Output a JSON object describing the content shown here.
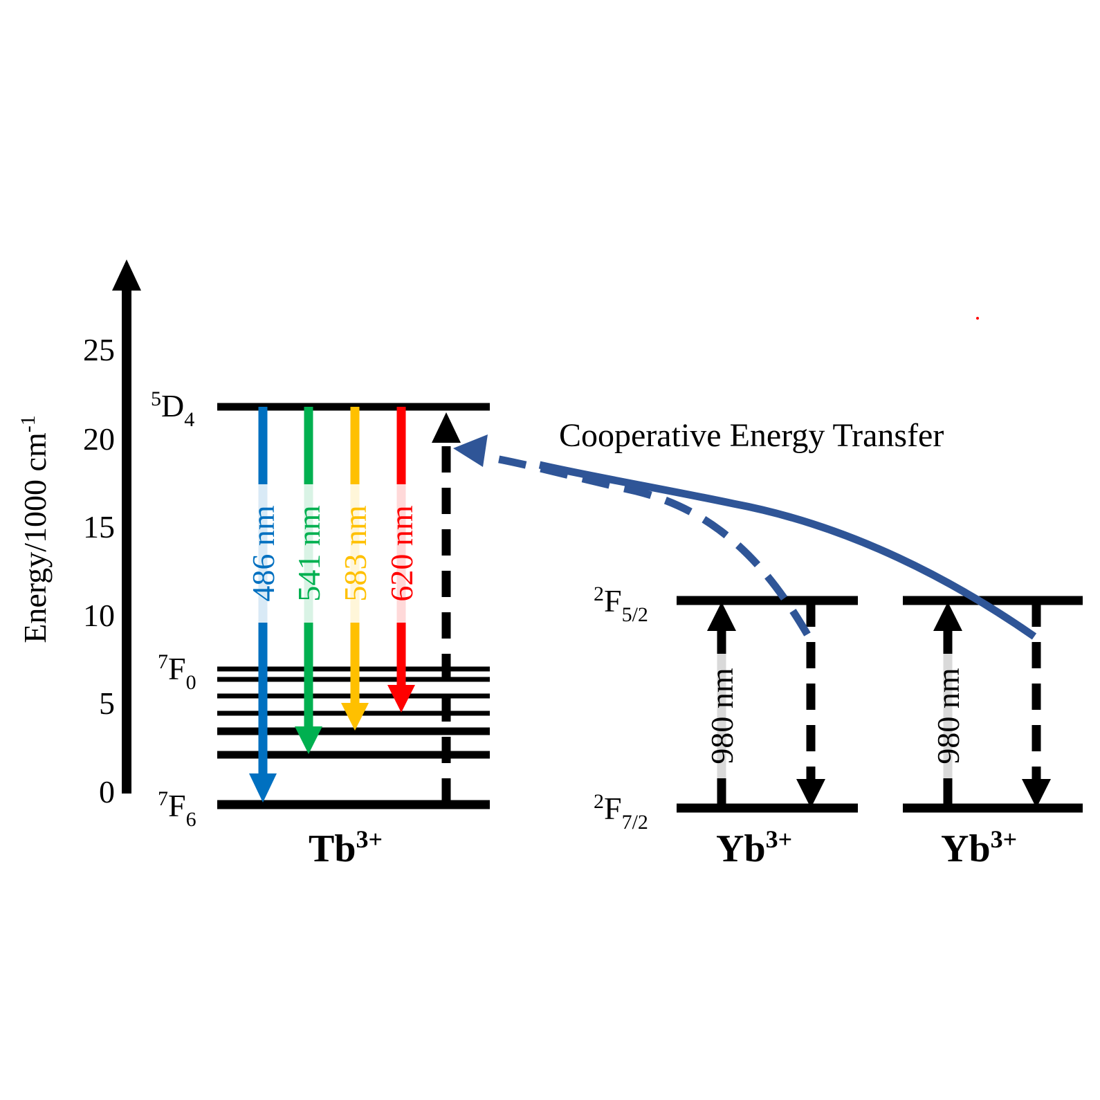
{
  "axis": {
    "label": "Energy/1000 cm",
    "label_sup": "-1",
    "ticks": [
      "0",
      "5",
      "10",
      "15",
      "20",
      "25"
    ]
  },
  "levels": {
    "tb_upper": {
      "main": "D",
      "pre": "5",
      "sub": "4"
    },
    "tb_f0": {
      "main": "F",
      "pre": "7",
      "sub": "0"
    },
    "tb_f6": {
      "main": "F",
      "pre": "7",
      "sub": "6"
    },
    "yb_upper": {
      "main": "F",
      "pre": "2",
      "sub": "5/2"
    },
    "yb_lower": {
      "main": "F",
      "pre": "2",
      "sub": "7/2"
    }
  },
  "ions": {
    "tb": {
      "name": "Tb",
      "charge": "3+"
    },
    "yb1": {
      "name": "Yb",
      "charge": "3+"
    },
    "yb2": {
      "name": "Yb",
      "charge": "3+"
    }
  },
  "emissions": [
    {
      "label": "486 nm",
      "color": "#0070C0"
    },
    {
      "label": "541 nm",
      "color": "#00B050"
    },
    {
      "label": "583 nm",
      "color": "#FFC000"
    },
    {
      "label": "620 nm",
      "color": "#FF0000"
    }
  ],
  "excitation_label": "980 nm",
  "transfer_label": "Cooperative Energy Transfer",
  "colors": {
    "transfer": "#2F5597",
    "line": "#000000"
  }
}
